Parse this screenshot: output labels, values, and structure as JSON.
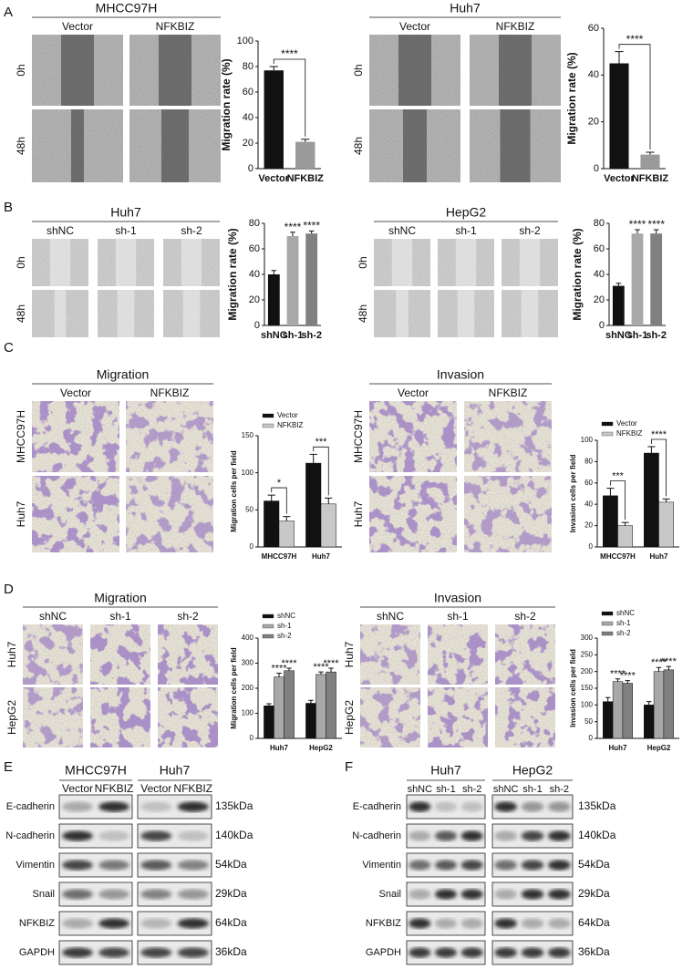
{
  "chart_data": [
    {
      "type": "bar",
      "ylabel": "Migration rate (%)",
      "categories": [
        "Vector",
        "NFKBIZ"
      ],
      "values": [
        77,
        21
      ],
      "errors": [
        3,
        2
      ],
      "colors": [
        "#111111",
        "#9a9a9a"
      ],
      "ylim": [
        0,
        100
      ],
      "yticks": [
        0,
        20,
        40,
        60,
        80,
        100
      ],
      "annotation": "****"
    },
    {
      "type": "bar",
      "ylabel": "Migration rate (%)",
      "categories": [
        "Vector",
        "NFKBIZ"
      ],
      "values": [
        45,
        6
      ],
      "errors": [
        5,
        1
      ],
      "colors": [
        "#111111",
        "#9a9a9a"
      ],
      "ylim": [
        0,
        60
      ],
      "yticks": [
        0,
        20,
        40,
        60
      ],
      "annotation": "****"
    },
    {
      "type": "bar",
      "ylabel": "Migration rate (%)",
      "categories": [
        "shNC",
        "sh-1",
        "sh-2"
      ],
      "values": [
        40,
        70,
        72
      ],
      "errors": [
        3,
        3,
        2
      ],
      "colors": [
        "#111111",
        "#a8a8a8",
        "#808080"
      ],
      "ylim": [
        0,
        80
      ],
      "yticks": [
        0,
        20,
        40,
        60,
        80
      ],
      "annotations": [
        null,
        "****",
        "****"
      ]
    },
    {
      "type": "bar",
      "ylabel": "Migration rate (%)",
      "categories": [
        "shNC",
        "sh-1",
        "sh-2"
      ],
      "values": [
        31,
        72,
        72
      ],
      "errors": [
        2,
        3,
        3
      ],
      "colors": [
        "#111111",
        "#a8a8a8",
        "#808080"
      ],
      "ylim": [
        0,
        80
      ],
      "yticks": [
        0,
        20,
        40,
        60,
        80
      ],
      "annotations": [
        null,
        "****",
        "****"
      ]
    },
    {
      "type": "bar",
      "ylabel": "Migration cells per field",
      "categories": [
        "MHCC97H",
        "Huh7"
      ],
      "series": [
        {
          "name": "Vector",
          "color": "#111111",
          "values": [
            62,
            113
          ],
          "errors": [
            8,
            12
          ]
        },
        {
          "name": "NFKBIZ",
          "color": "#c8c8c8",
          "values": [
            35,
            58
          ],
          "errors": [
            6,
            8
          ]
        }
      ],
      "ylim": [
        0,
        150
      ],
      "yticks": [
        0,
        50,
        100,
        150
      ],
      "annotations": [
        "*",
        "***"
      ],
      "legend": "upper left"
    },
    {
      "type": "bar",
      "ylabel": "Invasion cells per field",
      "categories": [
        "MHCC97H",
        "Huh7"
      ],
      "series": [
        {
          "name": "Vector",
          "color": "#111111",
          "values": [
            48,
            88
          ],
          "errors": [
            7,
            6
          ]
        },
        {
          "name": "NFKBIZ",
          "color": "#c8c8c8",
          "values": [
            20,
            42
          ],
          "errors": [
            3,
            3
          ]
        }
      ],
      "ylim": [
        0,
        100
      ],
      "yticks": [
        0,
        20,
        40,
        60,
        80,
        100
      ],
      "annotations": [
        "***",
        "****"
      ],
      "legend": "upper left"
    },
    {
      "type": "bar",
      "ylabel": "Migration cells per field",
      "categories": [
        "Huh7",
        "HepG2"
      ],
      "series": [
        {
          "name": "shNC",
          "color": "#111111",
          "values": [
            130,
            140
          ],
          "errors": [
            8,
            12
          ]
        },
        {
          "name": "sh-1",
          "color": "#a8a8a8",
          "values": [
            245,
            255
          ],
          "errors": [
            15,
            10
          ],
          "annotations": [
            "****",
            "****"
          ]
        },
        {
          "name": "sh-2",
          "color": "#808080",
          "values": [
            270,
            265
          ],
          "errors": [
            10,
            15
          ],
          "annotations": [
            "****",
            "****"
          ]
        }
      ],
      "ylim": [
        0,
        400
      ],
      "yticks": [
        0,
        100,
        200,
        300,
        400
      ],
      "legend": "upper left"
    },
    {
      "type": "bar",
      "ylabel": "Invasion cells per field",
      "categories": [
        "Huh7",
        "HepG2"
      ],
      "series": [
        {
          "name": "shNC",
          "color": "#111111",
          "values": [
            110,
            100
          ],
          "errors": [
            12,
            10
          ]
        },
        {
          "name": "sh-1",
          "color": "#a8a8a8",
          "values": [
            170,
            200
          ],
          "errors": [
            8,
            12
          ],
          "annotations": [
            "****",
            "****"
          ]
        },
        {
          "name": "sh-2",
          "color": "#808080",
          "values": [
            165,
            205
          ],
          "errors": [
            8,
            10
          ],
          "annotations": [
            "****",
            "****"
          ]
        }
      ],
      "ylim": [
        0,
        300
      ],
      "yticks": [
        0,
        50,
        100,
        150,
        200,
        250,
        300
      ],
      "legend": "upper left"
    }
  ],
  "panels": [
    {
      "label": "A",
      "groups": [
        {
          "title": "MHCC97H",
          "columns": [
            "Vector",
            "NFKBIZ"
          ],
          "rows": [
            "0h",
            "48h"
          ]
        },
        {
          "title": "Huh7",
          "columns": [
            "Vector",
            "NFKBIZ"
          ],
          "rows": [
            "0h",
            "48h"
          ]
        }
      ]
    },
    {
      "label": "B",
      "groups": [
        {
          "title": "Huh7",
          "columns": [
            "shNC",
            "sh-1",
            "sh-2"
          ],
          "rows": [
            "0h",
            "48h"
          ]
        },
        {
          "title": "HepG2",
          "columns": [
            "shNC",
            "sh-1",
            "sh-2"
          ],
          "rows": [
            "0h",
            "48h"
          ]
        }
      ]
    },
    {
      "label": "C",
      "groups": [
        {
          "title": "Migration",
          "columns": [
            "Vector",
            "NFKBIZ"
          ],
          "rows": [
            "MHCC97H",
            "Huh7"
          ]
        },
        {
          "title": "Invasion",
          "columns": [
            "Vector",
            "NFKBIZ"
          ],
          "rows": [
            "MHCC97H",
            "Huh7"
          ]
        }
      ]
    },
    {
      "label": "D",
      "groups": [
        {
          "title": "Migration",
          "columns": [
            "shNC",
            "sh-1",
            "sh-2"
          ],
          "rows": [
            "Huh7",
            "HepG2"
          ]
        },
        {
          "title": "Invasion",
          "columns": [
            "shNC",
            "sh-1",
            "sh-2"
          ],
          "rows": [
            "Huh7",
            "HepG2"
          ]
        }
      ]
    },
    {
      "label": "E",
      "groups": [
        {
          "title": "MHCC97H",
          "columns": [
            "Vector",
            "NFKBIZ"
          ]
        },
        {
          "title": "Huh7",
          "columns": [
            "Vector",
            "NFKBIZ"
          ]
        }
      ],
      "proteins": [
        "E-cadherin",
        "N-cadherin",
        "Vimentin",
        "Snail",
        "NFKBIZ",
        "GAPDH"
      ],
      "sizes": [
        "135kDa",
        "140kDa",
        "54kDa",
        "29kDa",
        "64kDa",
        "36kDa"
      ]
    },
    {
      "label": "F",
      "groups": [
        {
          "title": "Huh7",
          "columns": [
            "shNC",
            "sh-1",
            "sh-2"
          ]
        },
        {
          "title": "HepG2",
          "columns": [
            "shNC",
            "sh-1",
            "sh-2"
          ]
        }
      ],
      "proteins": [
        "E-cadherin",
        "N-cadherin",
        "Vimentin",
        "Snail",
        "NFKBIZ",
        "GAPDH"
      ],
      "sizes": [
        "135kDa",
        "140kDa",
        "54kDa",
        "29kDa",
        "64kDa",
        "36kDa"
      ]
    }
  ]
}
